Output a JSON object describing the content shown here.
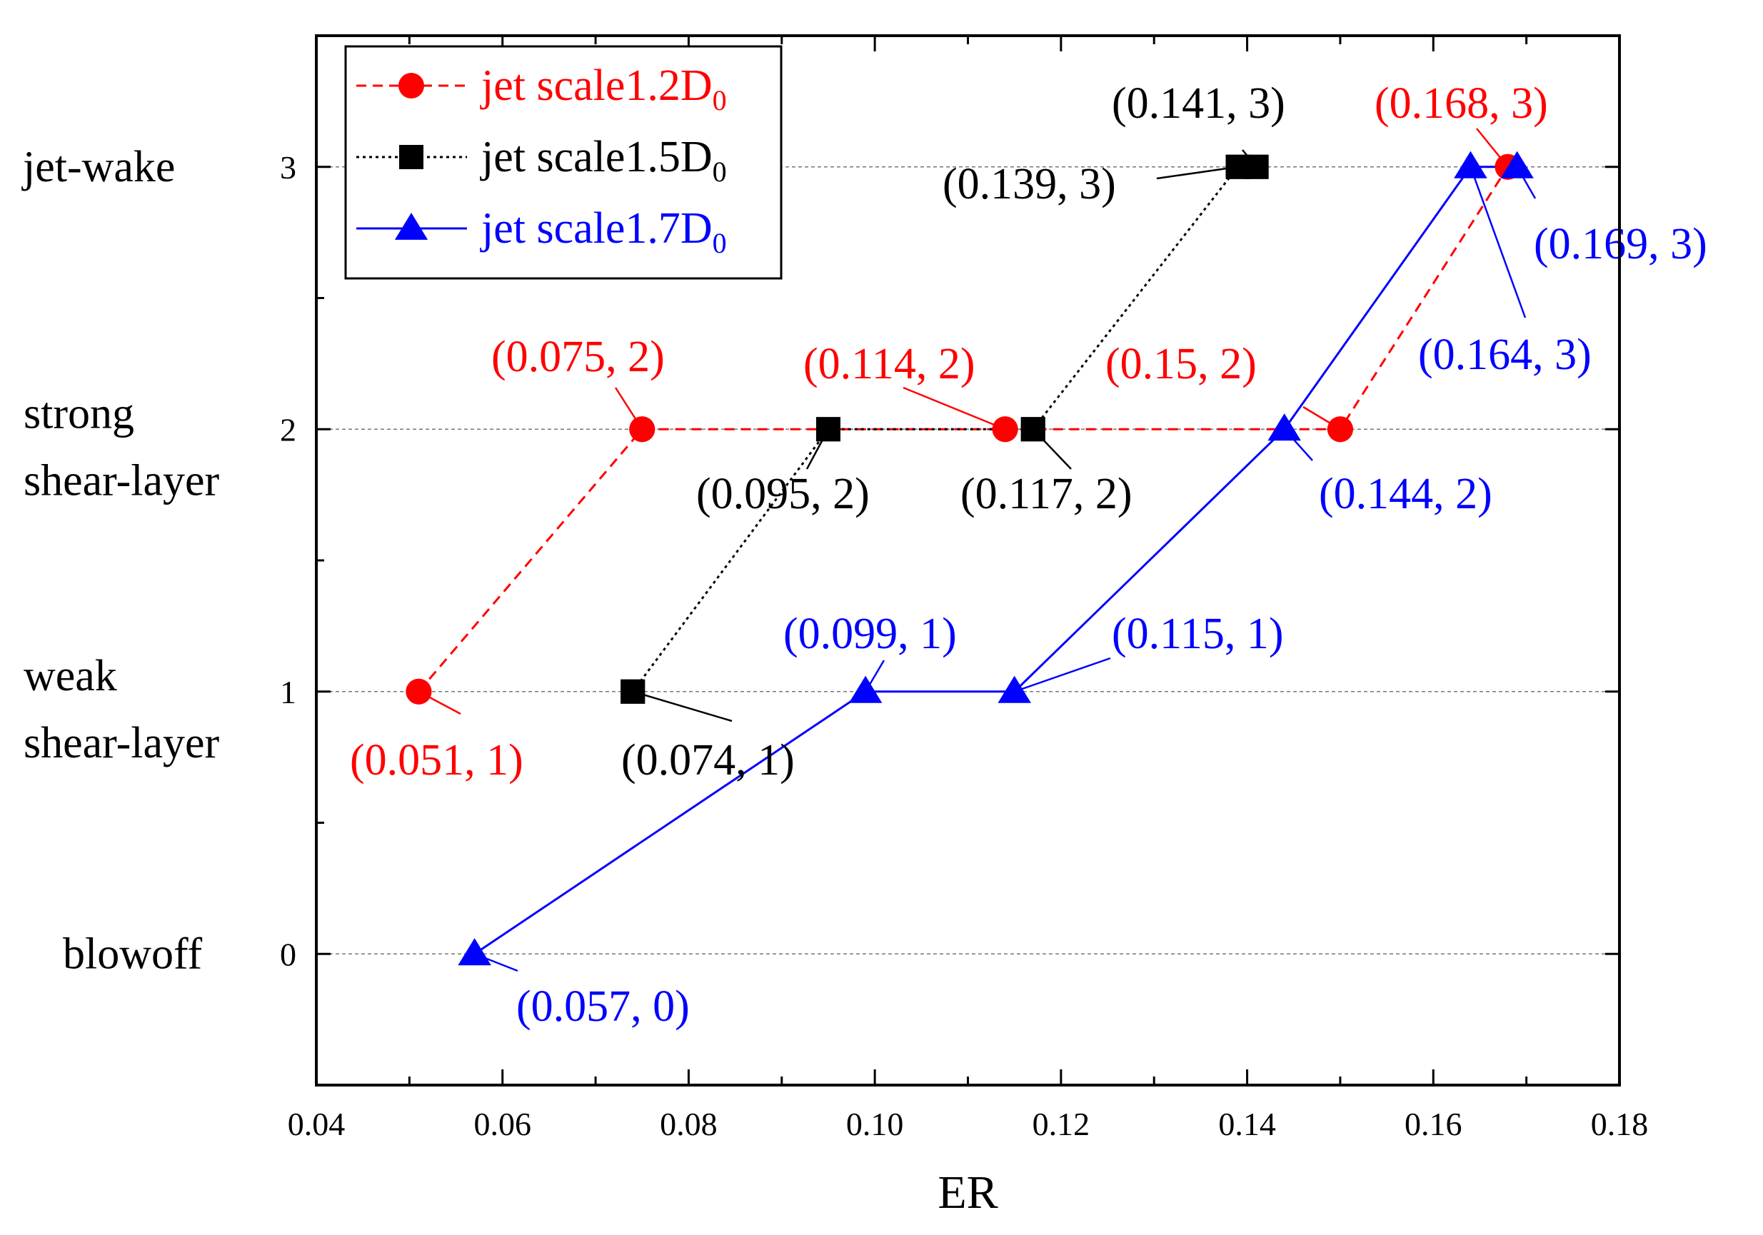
{
  "chart_data": {
    "type": "line",
    "title": "",
    "xlabel": "ER",
    "ylabel": "",
    "xlim": [
      0.04,
      0.18
    ],
    "ylim": [
      -0.5,
      3.5
    ],
    "x_ticks": [
      "0.04",
      "0.06",
      "0.08",
      "0.10",
      "0.12",
      "0.14",
      "0.16",
      "0.18"
    ],
    "y_ticks": [
      "0",
      "1",
      "2",
      "3"
    ],
    "y_categories": [
      {
        "value": 3,
        "lines": [
          "jet-wake"
        ]
      },
      {
        "value": 2,
        "lines": [
          "strong",
          "shear-layer"
        ]
      },
      {
        "value": 1,
        "lines": [
          "weak",
          "shear-layer"
        ]
      },
      {
        "value": 0,
        "lines": [
          "blowoff"
        ]
      }
    ],
    "grid": "horizontal dotted at y ticks",
    "legend": {
      "placement": "top-left",
      "entries": [
        {
          "text": "jet scale1.2D",
          "sub": "0"
        },
        {
          "text": "jet scale1.5D",
          "sub": "0"
        },
        {
          "text": "jet scale1.7D",
          "sub": "0"
        }
      ]
    },
    "series": [
      {
        "name": "jet scale1.2D0",
        "color": "#ff0000",
        "marker": "circle",
        "line": "dashed",
        "points": [
          {
            "x": 0.051,
            "y": 1,
            "label": "(0.051, 1)"
          },
          {
            "x": 0.075,
            "y": 2,
            "label": "(0.075, 2)"
          },
          {
            "x": 0.114,
            "y": 2,
            "label": "(0.114, 2)"
          },
          {
            "x": 0.15,
            "y": 2,
            "label": "(0.15, 2)"
          },
          {
            "x": 0.168,
            "y": 3,
            "label": "(0.168, 3)"
          }
        ]
      },
      {
        "name": "jet scale1.5D0",
        "color": "#000000",
        "marker": "square",
        "line": "dotted",
        "points": [
          {
            "x": 0.074,
            "y": 1,
            "label": "(0.074, 1)"
          },
          {
            "x": 0.095,
            "y": 2,
            "label": "(0.095, 2)"
          },
          {
            "x": 0.117,
            "y": 2,
            "label": "(0.117, 2)"
          },
          {
            "x": 0.139,
            "y": 3,
            "label": "(0.139, 3)"
          },
          {
            "x": 0.141,
            "y": 3,
            "label": "(0.141, 3)"
          }
        ]
      },
      {
        "name": "jet scale1.7D0",
        "color": "#0000ff",
        "marker": "triangle",
        "line": "solid",
        "points": [
          {
            "x": 0.057,
            "y": 0,
            "label": "(0.057, 0)"
          },
          {
            "x": 0.099,
            "y": 1,
            "label": "(0.099, 1)"
          },
          {
            "x": 0.115,
            "y": 1,
            "label": "(0.115, 1)"
          },
          {
            "x": 0.144,
            "y": 2,
            "label": "(0.144, 2)"
          },
          {
            "x": 0.164,
            "y": 3,
            "label": "(0.164, 3)"
          },
          {
            "x": 0.169,
            "y": 3,
            "label": "(0.169, 3)"
          }
        ]
      }
    ]
  }
}
